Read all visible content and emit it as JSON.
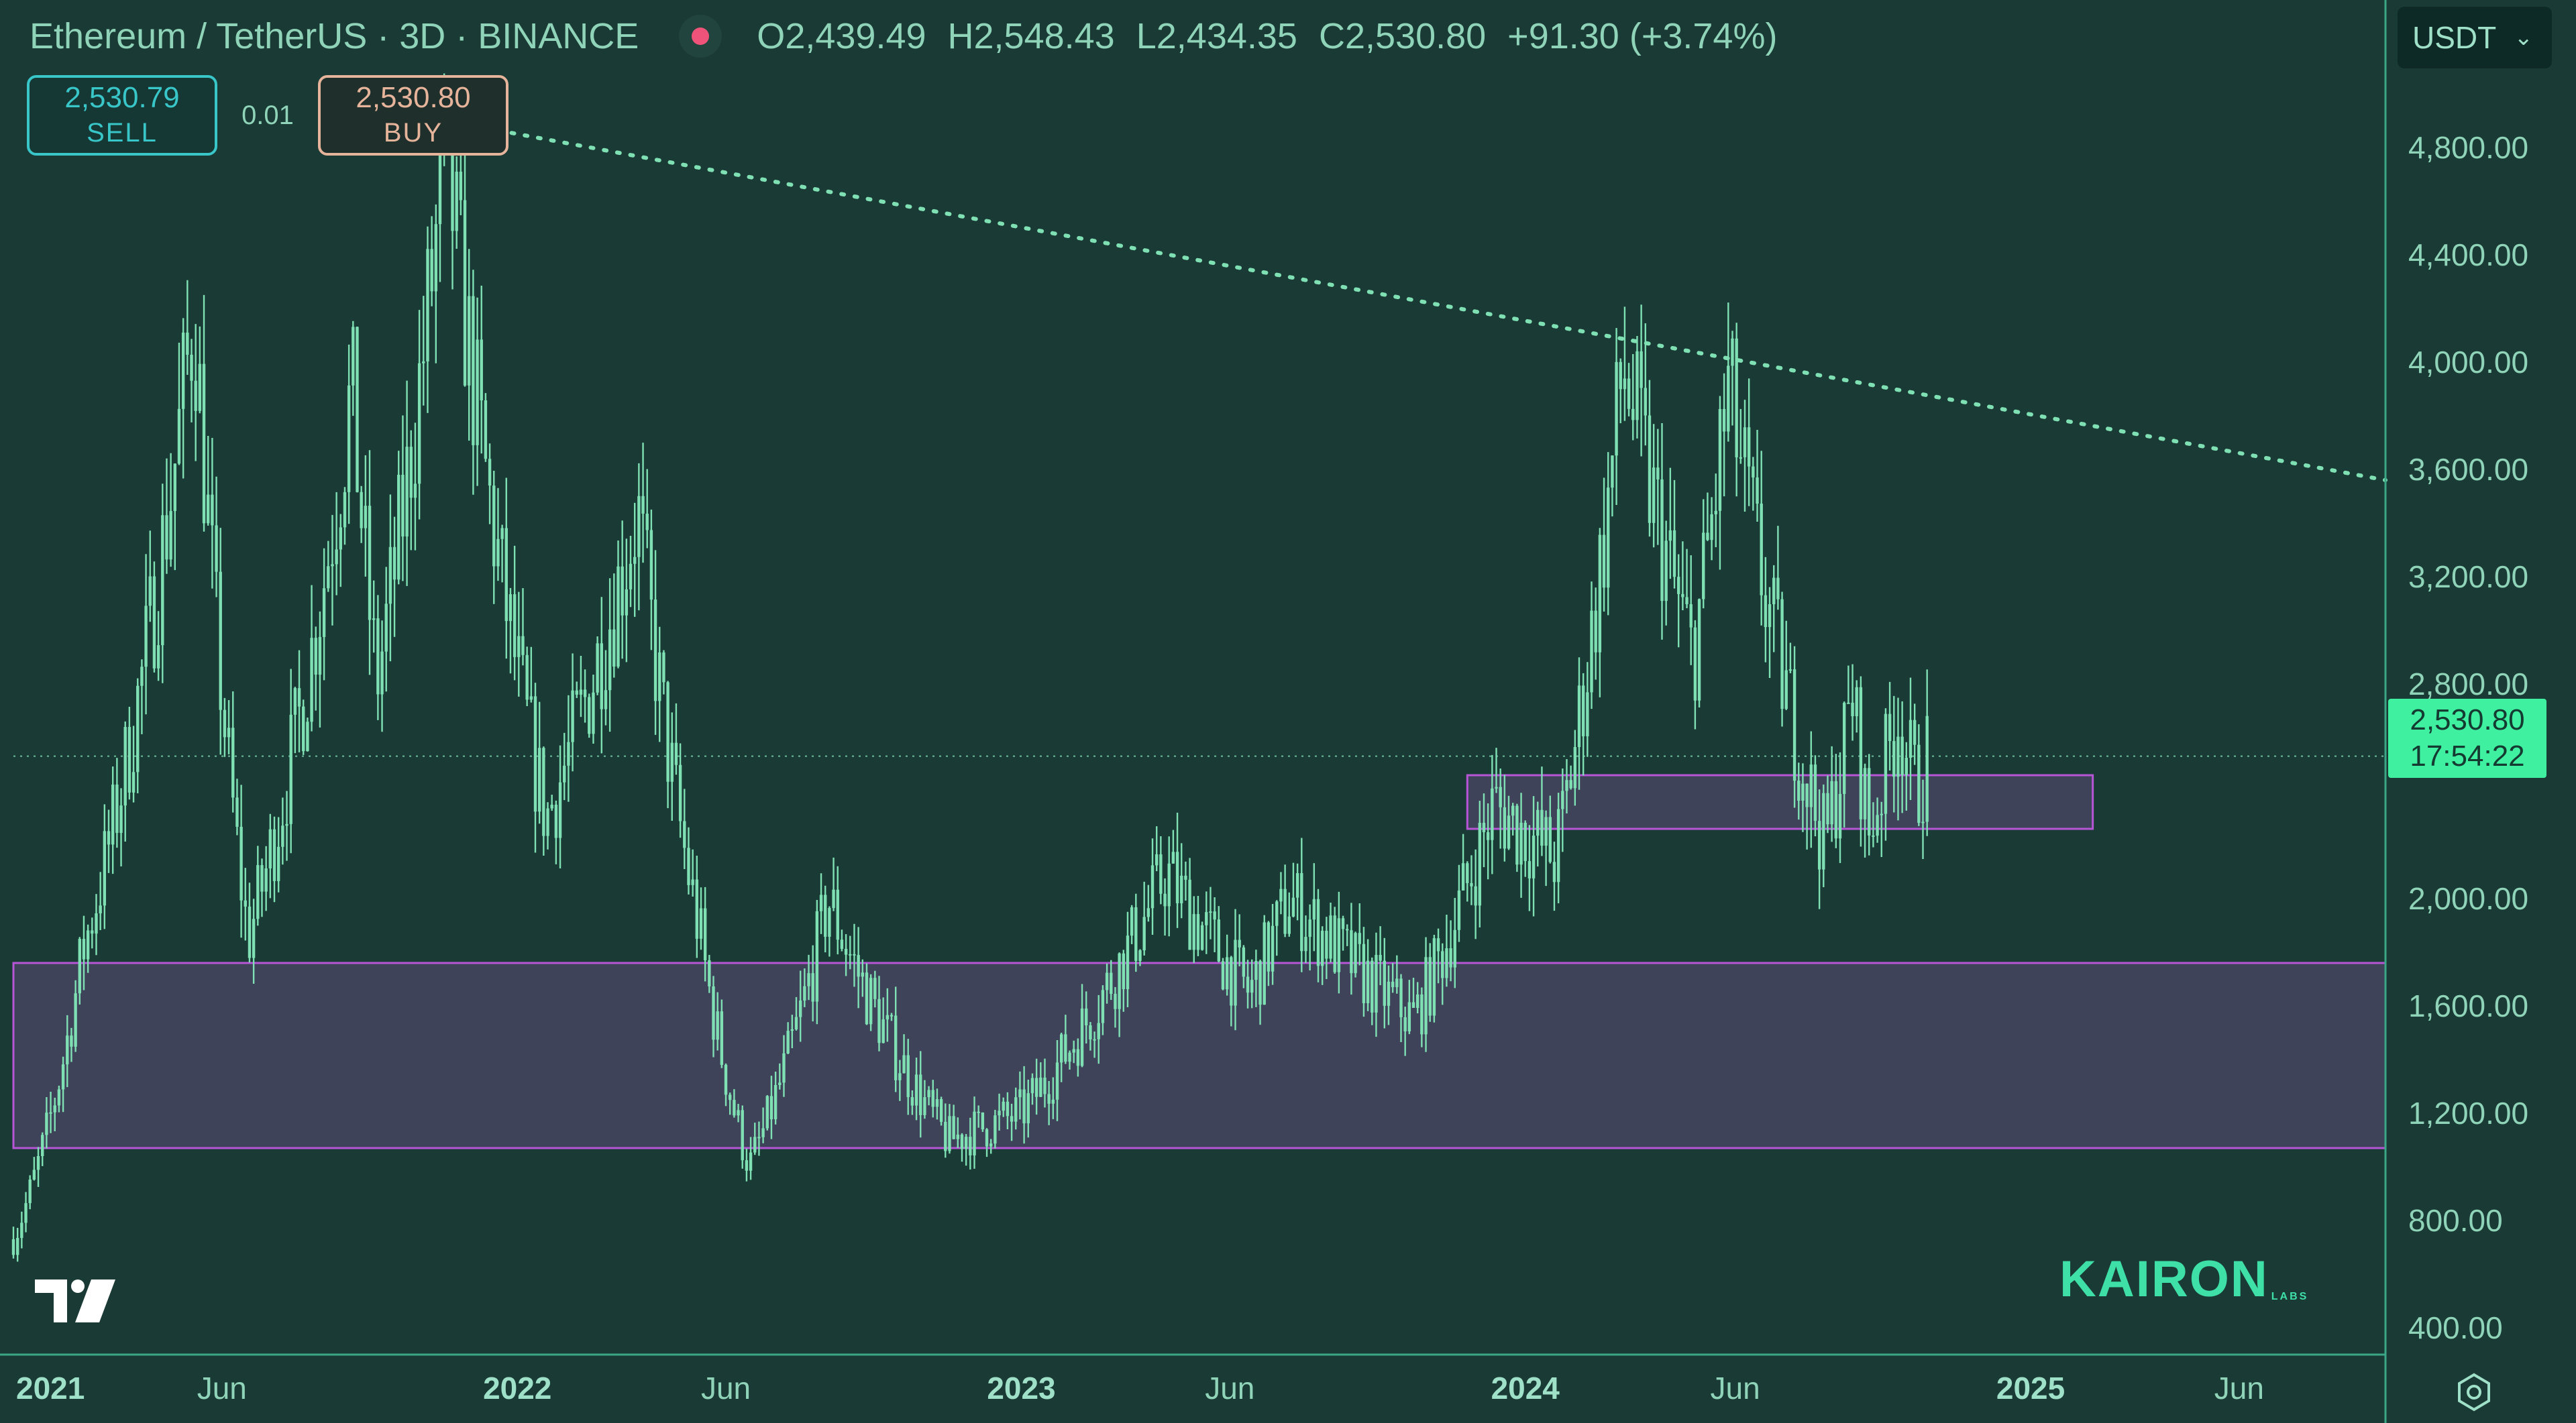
{
  "header": {
    "symbol": "Ethereum / TetherUS · 3D · BINANCE",
    "open_label": "O",
    "open": "2,439.49",
    "high_label": "H",
    "high": "2,548.43",
    "low_label": "L",
    "low": "2,434.35",
    "close_label": "C",
    "close": "2,530.80",
    "change": "+91.30 (+3.74%)"
  },
  "trade": {
    "sell_price": "2,530.79",
    "sell_label": "SELL",
    "spread": "0.01",
    "buy_price": "2,530.80",
    "buy_label": "BUY"
  },
  "currency": "USDT",
  "last_price": {
    "price": "2,530.80",
    "countdown": "17:54:22"
  },
  "brand": {
    "name": "KAIRON",
    "sub": "LABS"
  },
  "colors": {
    "background": "#1a3a35",
    "candle": "#7fe0b4",
    "zone_fill": "#47455f",
    "zone_border": "#b655d6",
    "trendline": "#7fe0b4",
    "price_tag": "#3ef0a0"
  },
  "chart_data": {
    "type": "candlestick",
    "y_axis": {
      "scale": "linear",
      "range": [
        300,
        5200
      ],
      "ticks": [
        400,
        800,
        1200,
        1600,
        2000,
        2800,
        3200,
        3600,
        4000,
        4400,
        4800
      ],
      "tick_labels": [
        "400.00",
        "800.00",
        "1,200.00",
        "1,600.00",
        "2,000.00",
        "2,800.00",
        "3,200.00",
        "3,600.00",
        "4,000.00",
        "4,400.00",
        "4,800.00"
      ],
      "side": "right"
    },
    "x_axis": {
      "range": [
        "2021-01-01",
        "2025-09-15"
      ],
      "ticks": [
        "2021-01-01",
        "2021-06-01",
        "2022-01-01",
        "2022-06-01",
        "2023-01-01",
        "2023-06-01",
        "2024-01-01",
        "2024-06-01",
        "2025-01-01",
        "2025-06-01"
      ],
      "tick_labels": [
        "2021",
        "Jun",
        "2022",
        "Jun",
        "2023",
        "Jun",
        "2024",
        "Jun",
        "2025",
        "Jun"
      ]
    },
    "price_path": [
      [
        "2021-01-01",
        730
      ],
      [
        "2021-02-20",
        1800
      ],
      [
        "2021-05-12",
        4200
      ],
      [
        "2021-06-20",
        1850
      ],
      [
        "2021-09-03",
        3900
      ],
      [
        "2021-09-21",
        2800
      ],
      [
        "2021-11-10",
        4800
      ],
      [
        "2022-01-22",
        2300
      ],
      [
        "2022-03-29",
        3450
      ],
      [
        "2022-05-12",
        1900
      ],
      [
        "2022-06-18",
        1000
      ],
      [
        "2022-08-14",
        2000
      ],
      [
        "2022-11-09",
        1100
      ],
      [
        "2023-01-01",
        1200
      ],
      [
        "2023-04-16",
        2100
      ],
      [
        "2023-06-15",
        1650
      ],
      [
        "2023-07-14",
        2000
      ],
      [
        "2023-10-12",
        1550
      ],
      [
        "2023-12-09",
        2350
      ],
      [
        "2024-01-23",
        2150
      ],
      [
        "2024-03-12",
        4000
      ],
      [
        "2024-05-01",
        2900
      ],
      [
        "2024-05-27",
        3900
      ],
      [
        "2024-08-05",
        2200
      ],
      [
        "2024-08-25",
        2750
      ],
      [
        "2024-09-06",
        2250
      ],
      [
        "2024-09-27",
        2700
      ],
      [
        "2024-10-10",
        2400
      ],
      [
        "2024-10-18",
        2531
      ]
    ],
    "last_price": 2530.8,
    "zones": [
      {
        "from": "2020-12-15",
        "to": "2025-09-15",
        "low": 1070,
        "high": 1760
      },
      {
        "from": "2023-11-20",
        "to": "2025-02-15",
        "low": 2260,
        "high": 2460
      }
    ],
    "trendline": {
      "start": [
        "2021-11-10",
        4900
      ],
      "end": [
        "2025-09-15",
        3560
      ],
      "style": "dotted"
    },
    "grid": false,
    "legend": "none"
  }
}
